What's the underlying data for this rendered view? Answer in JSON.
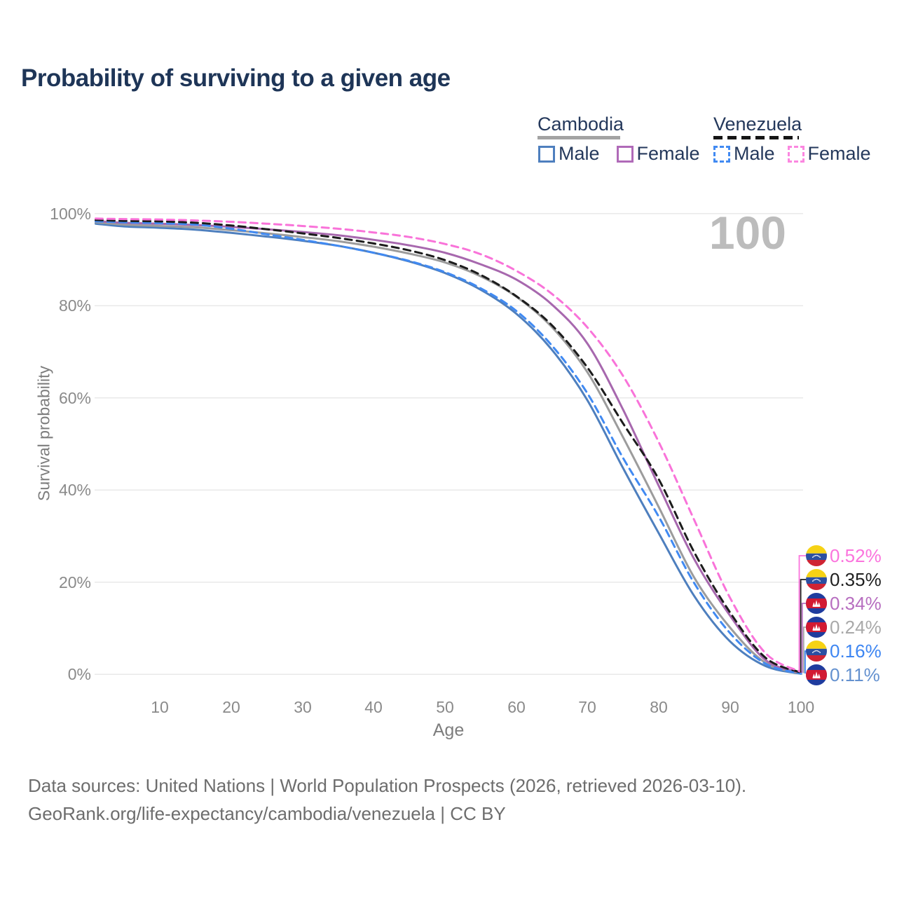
{
  "title": "Probability of surviving to a given age",
  "legend": {
    "cambodia": {
      "label": "Cambodia",
      "male": "Male",
      "female": "Female"
    },
    "venezuela": {
      "label": "Venezuela",
      "male": "Male",
      "female": "Female"
    }
  },
  "watermark": "100",
  "axes": {
    "ylabel": "Survival probability",
    "xlabel": "Age",
    "y_ticks": [
      "100%",
      "80%",
      "60%",
      "40%",
      "20%",
      "0%"
    ],
    "x_ticks": [
      "10",
      "20",
      "30",
      "40",
      "50",
      "60",
      "70",
      "80",
      "90",
      "100"
    ]
  },
  "colors": {
    "title": "#1e3557",
    "cambodia_male": "#4e7fbe",
    "cambodia_female": "#a768ae",
    "cambodia_total": "#9c9c9c",
    "venezuela_male": "#418af2",
    "venezuela_female": "#f973d9",
    "venezuela_total": "#1c1c1c",
    "grid": "#e9e9e9"
  },
  "end_labels": [
    {
      "flag": "venezuela",
      "value": "0.52%",
      "color": "#fb74dd"
    },
    {
      "flag": "venezuela",
      "value": "0.35%",
      "color": "#1f1f1f"
    },
    {
      "flag": "cambodia",
      "value": "0.34%",
      "color": "#b76ec0"
    },
    {
      "flag": "cambodia",
      "value": "0.24%",
      "color": "#a9a9a9"
    },
    {
      "flag": "venezuela",
      "value": "0.16%",
      "color": "#3e86f2"
    },
    {
      "flag": "cambodia",
      "value": "0.11%",
      "color": "#6491cf"
    }
  ],
  "footer": {
    "line1": "Data sources: United Nations | World Population Prospects (2026, retrieved 2026-03-10).",
    "line2": "GeoRank.org/life-expectancy/cambodia/venezuela | CC BY"
  },
  "chart_data": {
    "type": "line",
    "title": "Probability of surviving to a given age",
    "xlabel": "Age",
    "ylabel": "Survival probability",
    "xlim": [
      0,
      100
    ],
    "ylim": [
      0,
      100
    ],
    "grid": "horizontal",
    "x": [
      1,
      5,
      10,
      15,
      20,
      25,
      30,
      35,
      40,
      45,
      50,
      55,
      60,
      65,
      70,
      75,
      80,
      85,
      90,
      95,
      100
    ],
    "series": [
      {
        "name": "Venezuela Female",
        "style": "dashed",
        "color": "#f973d9",
        "end_value_pct": 0.52,
        "values": [
          98.9,
          98.8,
          98.7,
          98.5,
          98.2,
          97.8,
          97.3,
          96.7,
          95.9,
          94.9,
          93.4,
          91.2,
          87.6,
          82.6,
          75.3,
          64.8,
          50.5,
          33.5,
          16.7,
          4.6,
          0.52
        ]
      },
      {
        "name": "Venezuela Total",
        "style": "dashed",
        "color": "#1c1c1c",
        "end_value_pct": 0.35,
        "values": [
          98.6,
          98.4,
          98.3,
          98.0,
          97.4,
          96.6,
          95.7,
          94.7,
          93.5,
          92.0,
          89.9,
          86.7,
          82.1,
          75.8,
          66.6,
          54.5,
          42.4,
          26.5,
          13.5,
          3.6,
          0.35
        ]
      },
      {
        "name": "Cambodia Female",
        "style": "solid",
        "color": "#a768ae",
        "end_value_pct": 0.34,
        "values": [
          98.4,
          98.0,
          97.8,
          97.5,
          97.1,
          96.6,
          96.0,
          95.3,
          94.3,
          93.1,
          91.5,
          89.0,
          85.7,
          80.3,
          71.8,
          57.5,
          41.0,
          25.0,
          12.8,
          3.1,
          0.34
        ]
      },
      {
        "name": "Cambodia Total",
        "style": "solid",
        "color": "#9c9c9c",
        "end_value_pct": 0.24,
        "values": [
          98.1,
          97.6,
          97.3,
          97.0,
          96.4,
          95.7,
          94.9,
          94.0,
          92.8,
          91.3,
          89.4,
          86.4,
          82.0,
          75.4,
          65.6,
          51.5,
          36.4,
          21.0,
          10.2,
          2.5,
          0.24
        ]
      },
      {
        "name": "Venezuela Male",
        "style": "dashed",
        "color": "#418af2",
        "end_value_pct": 0.16,
        "values": [
          98.3,
          98.1,
          97.9,
          97.6,
          96.7,
          95.5,
          94.3,
          93.0,
          91.5,
          89.7,
          87.3,
          83.8,
          78.9,
          71.4,
          61.0,
          47.0,
          34.3,
          19.8,
          9.0,
          2.3,
          0.16
        ]
      },
      {
        "name": "Cambodia Male",
        "style": "solid",
        "color": "#4e7fbe",
        "end_value_pct": 0.11,
        "values": [
          97.8,
          97.2,
          96.9,
          96.5,
          95.8,
          95.0,
          94.1,
          93.0,
          91.5,
          89.6,
          87.1,
          83.5,
          78.3,
          70.5,
          59.5,
          44.8,
          30.7,
          17.0,
          7.2,
          1.8,
          0.11
        ]
      }
    ]
  }
}
